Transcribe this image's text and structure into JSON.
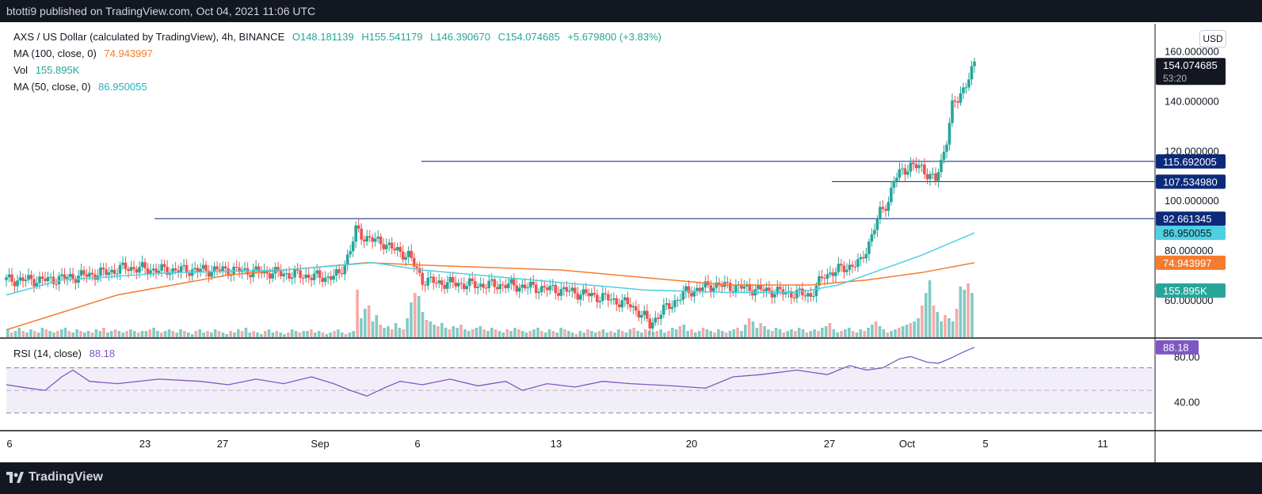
{
  "header": {
    "publisher_line": "btotti9 published on TradingView.com, Oct 04, 2021 11:06 UTC"
  },
  "footer": {
    "brand": "TradingView"
  },
  "legend": {
    "symbol": "AXS / US Dollar (calculated by TradingView), 4h, BINANCE",
    "open": "O148.181139",
    "high": "H155.541179",
    "low": "L146.390670",
    "close": "C154.074685",
    "change": "+5.679800 (+3.83%)",
    "ma100_label": "MA (100, close, 0)",
    "ma100_value": "74.943997",
    "vol_label": "Vol",
    "vol_value": "155.895K",
    "ma50_label": "MA (50, close, 0)",
    "ma50_value": "86.950055",
    "rsi_label": "RSI (14, close)",
    "rsi_value": "88.18"
  },
  "currency_button": "USD",
  "colors": {
    "up": "#26a69a",
    "down": "#ef5350",
    "ma100": "#f57c2e",
    "ma50": "#4dd0e1",
    "rsi": "#7e57c2",
    "hline": "#1e3a8a",
    "vol_up": "#80cbc4",
    "vol_down": "#f7a9a7"
  },
  "chart_data": [
    {
      "type": "candlestick",
      "title": "AXS / US Dollar (calculated by TradingView), 4h, BINANCE",
      "x_ticks": [
        "6",
        "23",
        "27",
        "Sep",
        "6",
        "13",
        "20",
        "27",
        "Oct",
        "5",
        "11"
      ],
      "y_ticks": [
        "160.000000",
        "140.000000",
        "120.000000",
        "100.000000",
        "80.000000",
        "60.000000"
      ],
      "ylim": [
        45,
        171
      ],
      "price_tags": [
        {
          "label": "154.074685",
          "sub": "53:20",
          "kind": "last"
        },
        {
          "label": "115.692005",
          "kind": "hline"
        },
        {
          "label": "107.534980",
          "kind": "hline"
        },
        {
          "label": "92.661345",
          "kind": "hline"
        },
        {
          "label": "86.950055",
          "kind": "ma50"
        },
        {
          "label": "74.943997",
          "kind": "ma100"
        },
        {
          "label": "155.895K",
          "kind": "vol"
        }
      ],
      "horizontal_levels": [
        115.692005,
        107.53498,
        92.661345
      ],
      "series": [
        {
          "name": "MA (100, close, 0)",
          "last": 74.943997
        },
        {
          "name": "MA (50, close, 0)",
          "last": 86.950055
        },
        {
          "name": "Vol",
          "last": "155.895K"
        }
      ],
      "price_path": [
        [
          0,
          68
        ],
        [
          15,
          68
        ],
        [
          22,
          69
        ],
        [
          36,
          71
        ],
        [
          43,
          73
        ],
        [
          55,
          72
        ],
        [
          80,
          72
        ],
        [
          95,
          71
        ],
        [
          105,
          70
        ],
        [
          115,
          69
        ],
        [
          120,
          70
        ],
        [
          124,
          80
        ],
        [
          126,
          88
        ],
        [
          128,
          86
        ],
        [
          132,
          84
        ],
        [
          136,
          83
        ],
        [
          140,
          80
        ],
        [
          145,
          78
        ],
        [
          150,
          68
        ],
        [
          155,
          67
        ],
        [
          170,
          66
        ],
        [
          180,
          66
        ],
        [
          200,
          64
        ],
        [
          215,
          61
        ],
        [
          225,
          58
        ],
        [
          230,
          53
        ],
        [
          232,
          50
        ],
        [
          236,
          55
        ],
        [
          245,
          63
        ],
        [
          255,
          66
        ],
        [
          265,
          65
        ],
        [
          272,
          64
        ],
        [
          280,
          63
        ],
        [
          290,
          62
        ],
        [
          295,
          70
        ],
        [
          300,
          72
        ],
        [
          305,
          74
        ],
        [
          308,
          75
        ],
        [
          312,
          86
        ],
        [
          315,
          95
        ],
        [
          318,
          100
        ],
        [
          320,
          108
        ],
        [
          323,
          112
        ],
        [
          326,
          114
        ],
        [
          330,
          113
        ],
        [
          333,
          110
        ],
        [
          335,
          108
        ],
        [
          337,
          115
        ],
        [
          339,
          125
        ],
        [
          341,
          138
        ],
        [
          343,
          140
        ],
        [
          345,
          145
        ],
        [
          347,
          150
        ],
        [
          349,
          154
        ]
      ],
      "ma100_path": [
        [
          0,
          48
        ],
        [
          40,
          62
        ],
        [
          80,
          70
        ],
        [
          130,
          75
        ],
        [
          150,
          74
        ],
        [
          200,
          72
        ],
        [
          230,
          69
        ],
        [
          260,
          66
        ],
        [
          290,
          66
        ],
        [
          310,
          68
        ],
        [
          330,
          71
        ],
        [
          349,
          74.94
        ]
      ],
      "ma50_path": [
        [
          0,
          62
        ],
        [
          20,
          68
        ],
        [
          60,
          71
        ],
        [
          100,
          72
        ],
        [
          132,
          75
        ],
        [
          150,
          72
        ],
        [
          180,
          69
        ],
        [
          210,
          66
        ],
        [
          230,
          64
        ],
        [
          260,
          63
        ],
        [
          285,
          63
        ],
        [
          300,
          66
        ],
        [
          315,
          72
        ],
        [
          330,
          78
        ],
        [
          349,
          86.95
        ]
      ],
      "volume": [
        5,
        3,
        4,
        6,
        4,
        3,
        5,
        4,
        3,
        6,
        5,
        4,
        3,
        4,
        5,
        6,
        4,
        3,
        5,
        4,
        3,
        4,
        3,
        5,
        4,
        6,
        3,
        4,
        5,
        4,
        3,
        4,
        5,
        4,
        3,
        4,
        4,
        5,
        6,
        4,
        3,
        4,
        5,
        4,
        3,
        5,
        4,
        3,
        2,
        4,
        5,
        3,
        4,
        3,
        5,
        4,
        3,
        2,
        4,
        3,
        5,
        4,
        6,
        3,
        4,
        3,
        2,
        4,
        5,
        3,
        4,
        3,
        2,
        3,
        5,
        4,
        3,
        4,
        4,
        5,
        3,
        4,
        3,
        2,
        3,
        4,
        5,
        3,
        2,
        3,
        4,
        30,
        12,
        18,
        20,
        10,
        14,
        8,
        6,
        7,
        5,
        9,
        6,
        5,
        12,
        22,
        28,
        26,
        16,
        11,
        10,
        8,
        7,
        9,
        6,
        5,
        7,
        6,
        8,
        5,
        4,
        5,
        6,
        7,
        5,
        4,
        6,
        5,
        4,
        3,
        5,
        4,
        6,
        5,
        4,
        3,
        4,
        5,
        6,
        4,
        3,
        5,
        4,
        3,
        6,
        5,
        4,
        3,
        2,
        4,
        3,
        5,
        4,
        3,
        4,
        5,
        3,
        4,
        3,
        5,
        4,
        3,
        5,
        6,
        4,
        3,
        5,
        4,
        3,
        4,
        5,
        3,
        4,
        6,
        5,
        7,
        8,
        4,
        5,
        3,
        4,
        6,
        5,
        4,
        3,
        5,
        4,
        3,
        4,
        5,
        6,
        4,
        8,
        12,
        10,
        6,
        9,
        7,
        5,
        4,
        6,
        5,
        3,
        4,
        5,
        4,
        6,
        5,
        3,
        4,
        5,
        4,
        6,
        7,
        9,
        5,
        3,
        4,
        5,
        6,
        4,
        3,
        5,
        4,
        6,
        8,
        10,
        7,
        5,
        3,
        4,
        5,
        6,
        7,
        8,
        9,
        10,
        12,
        20,
        28,
        36,
        20,
        16,
        10,
        14,
        12,
        10,
        18,
        32,
        30,
        34,
        28
      ]
    },
    {
      "type": "line",
      "title": "RSI (14, close)",
      "y_ticks": [
        "80.00",
        "40.00"
      ],
      "ylim": [
        15,
        95
      ],
      "bands": [
        30,
        50,
        70
      ],
      "rsi_last": 88.18,
      "rsi_path": [
        [
          0,
          55
        ],
        [
          8,
          52
        ],
        [
          14,
          50
        ],
        [
          20,
          62
        ],
        [
          24,
          68
        ],
        [
          30,
          58
        ],
        [
          40,
          56
        ],
        [
          55,
          60
        ],
        [
          70,
          58
        ],
        [
          80,
          55
        ],
        [
          90,
          60
        ],
        [
          100,
          56
        ],
        [
          110,
          62
        ],
        [
          118,
          56
        ],
        [
          124,
          50
        ],
        [
          130,
          45
        ],
        [
          136,
          52
        ],
        [
          142,
          58
        ],
        [
          150,
          55
        ],
        [
          160,
          60
        ],
        [
          170,
          54
        ],
        [
          180,
          58
        ],
        [
          186,
          50
        ],
        [
          195,
          56
        ],
        [
          205,
          53
        ],
        [
          215,
          58
        ],
        [
          225,
          56
        ],
        [
          240,
          54
        ],
        [
          252,
          52
        ],
        [
          262,
          62
        ],
        [
          272,
          64
        ],
        [
          285,
          68
        ],
        [
          296,
          64
        ],
        [
          304,
          72
        ],
        [
          310,
          68
        ],
        [
          316,
          70
        ],
        [
          322,
          78
        ],
        [
          326,
          80
        ],
        [
          332,
          75
        ],
        [
          336,
          74
        ],
        [
          340,
          78
        ],
        [
          345,
          84
        ],
        [
          349,
          88.18
        ]
      ]
    }
  ]
}
